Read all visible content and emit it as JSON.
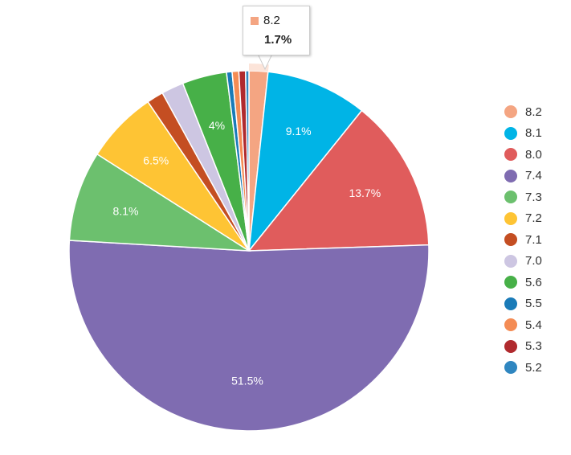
{
  "chart_data": {
    "type": "pie",
    "categories": [
      "8.2",
      "8.1",
      "8.0",
      "7.4",
      "7.3",
      "7.2",
      "7.1",
      "7.0",
      "5.6",
      "5.5",
      "5.4",
      "5.3",
      "5.2"
    ],
    "values": [
      1.7,
      9.1,
      13.7,
      51.5,
      8.1,
      6.5,
      1.5,
      2.0,
      4.0,
      0.5,
      0.6,
      0.6,
      0.3
    ],
    "data_labels": [
      "",
      "9.1%",
      "13.7%",
      "51.5%",
      "8.1%",
      "6.5%",
      "",
      "",
      "4%",
      "",
      "",
      "",
      ""
    ],
    "colors": [
      "#f4a582",
      "#00b4e6",
      "#e05c5c",
      "#7f6cb1",
      "#6cc06e",
      "#fec434",
      "#c44e22",
      "#cdc6e2",
      "#47b048",
      "#1a7bb8",
      "#f48c55",
      "#b02a2e",
      "#2f86c0"
    ],
    "legend_position": "right",
    "tooltip": {
      "name": "8.2",
      "value": "1.7%",
      "color": "#f4a582"
    }
  }
}
